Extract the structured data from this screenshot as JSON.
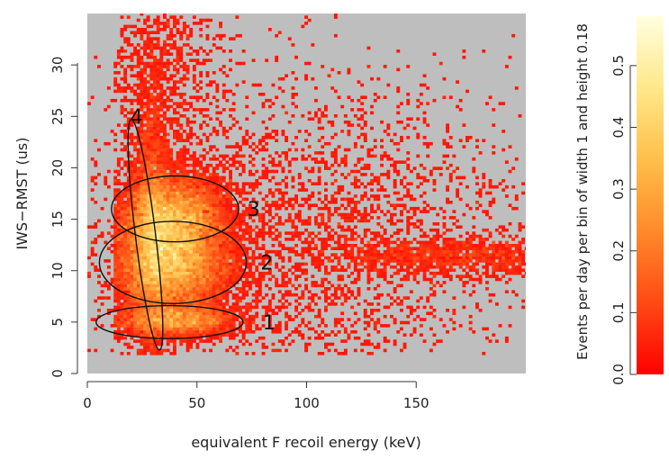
{
  "chart_data": {
    "type": "heatmap",
    "xlabel": "equivalent F recoil energy (keV)",
    "ylabel": "IWS−RMST (us)",
    "xlim": [
      0,
      200
    ],
    "ylim": [
      0,
      35
    ],
    "x_ticks": [
      0,
      50,
      100,
      150
    ],
    "y_ticks": [
      0,
      5,
      10,
      15,
      20,
      25,
      30
    ],
    "x_tick_labels": [
      "0",
      "50",
      "100",
      "150"
    ],
    "y_tick_labels": [
      "0",
      "5",
      "10",
      "15",
      "20",
      "25",
      "30"
    ],
    "background_color": "#bebebe",
    "bin_width": 1,
    "bin_height": 0.18,
    "colorbar": {
      "title": "Events per day per bin of width 1 and height 0.18",
      "range": [
        0,
        0.58
      ],
      "ticks": [
        0.0,
        0.1,
        0.2,
        0.3,
        0.4,
        0.5
      ],
      "tick_labels": [
        "0.0",
        "0.1",
        "0.2",
        "0.3",
        "0.4",
        "0.5"
      ],
      "colors": [
        "#ff0000",
        "#ff4a14",
        "#ff8a2a",
        "#ffbf4a",
        "#ffe88a",
        "#ffffe0"
      ]
    },
    "clusters": [
      {
        "cx": 38,
        "cy": 15,
        "sx": 12,
        "sy": 2.2,
        "weight": 0.27,
        "peak": 0.5
      },
      {
        "cx": 38,
        "cy": 10.5,
        "sx": 13,
        "sy": 2.4,
        "weight": 0.33,
        "peak": 0.45
      },
      {
        "cx": 40,
        "cy": 5.2,
        "sx": 14,
        "sy": 0.8,
        "weight": 0.09,
        "peak": 0.25
      },
      {
        "cx": 29,
        "cy": 14,
        "sx": 4.5,
        "sy": 6.5,
        "weight": 0.11,
        "peak": 0.2
      },
      {
        "cx": 90,
        "cy": 13,
        "sx": 55,
        "sy": 8,
        "weight": 0.13,
        "peak": 0.04
      },
      {
        "cx": 170,
        "cy": 11.5,
        "sx": 28,
        "sy": 1.0,
        "weight": 0.04,
        "peak": 0.03
      },
      {
        "cx": 33,
        "cy": 29,
        "sx": 14,
        "sy": 4.5,
        "weight": 0.03,
        "peak": 0.04
      }
    ],
    "regions": [
      {
        "label": "1",
        "cx": 37.5,
        "cy": 5.0,
        "rx": 33.5,
        "ry": 1.6,
        "angle_deg": 0,
        "label_x": 80,
        "label_y": 5.0
      },
      {
        "label": "2",
        "cx": 39.0,
        "cy": 10.8,
        "rx": 33.5,
        "ry": 4.0,
        "angle_deg": 0,
        "label_x": 79,
        "label_y": 10.8
      },
      {
        "label": "3",
        "cx": 40.0,
        "cy": 16.0,
        "rx": 29.0,
        "ry": 3.2,
        "angle_deg": 0,
        "label_x": 73,
        "label_y": 16.0
      },
      {
        "label": "4",
        "cx": 26.5,
        "cy": 13.5,
        "rx": 4.6,
        "ry": 11.3,
        "angle_deg": -7,
        "label_x": 19.5,
        "label_y": 25.0
      }
    ]
  }
}
